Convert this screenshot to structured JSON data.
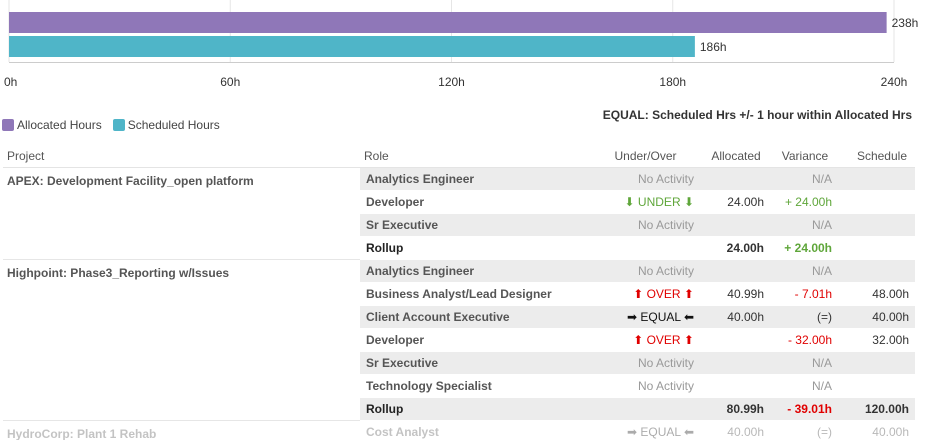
{
  "chart_data": {
    "type": "bar",
    "orientation": "horizontal",
    "series": [
      {
        "name": "Allocated Hours",
        "value": 238,
        "label": "238h",
        "color": "#8f77b8"
      },
      {
        "name": "Scheduled Hours",
        "value": 186,
        "label": "186h",
        "color": "#4fb5c8"
      }
    ],
    "xlim": [
      0,
      240
    ],
    "ticks": [
      {
        "value": 0,
        "label": "0h"
      },
      {
        "value": 60,
        "label": "60h"
      },
      {
        "value": 120,
        "label": "120h"
      },
      {
        "value": 180,
        "label": "180h"
      },
      {
        "value": 240,
        "label": "240h"
      }
    ],
    "grid": true,
    "legend": "bottom-left"
  },
  "legend": {
    "allocated_label": "Allocated Hours",
    "scheduled_label": "Scheduled Hours",
    "allocated_color": "#8f77b8",
    "scheduled_color": "#4fb5c8"
  },
  "note": "EQUAL: Scheduled Hrs +/- 1 hour within Allocated Hrs",
  "table": {
    "headers": {
      "project": "Project",
      "role": "Role",
      "under_over": "Under/Over",
      "allocated": "Allocated",
      "variance": "Variance",
      "schedule": "Schedule"
    },
    "groups": [
      {
        "project": "APEX: Development Facility_open platform",
        "rows": [
          {
            "role": "Analytics Engineer",
            "status": "No Activity",
            "status_type": "noact",
            "allocated": "",
            "variance": "N/A",
            "variance_type": "muted",
            "schedule": "",
            "shaded": true
          },
          {
            "role": "Developer",
            "status": "⬇ UNDER ⬇",
            "status_type": "under",
            "allocated": "24.00h",
            "variance": "+ 24.00h",
            "variance_type": "green",
            "schedule": "",
            "shaded": false
          },
          {
            "role": "Sr Executive",
            "status": "No Activity",
            "status_type": "noact",
            "allocated": "",
            "variance": "N/A",
            "variance_type": "muted",
            "schedule": "",
            "shaded": true
          },
          {
            "role": "Rollup",
            "status": "",
            "status_type": "noact",
            "allocated": "24.00h",
            "variance": "+ 24.00h",
            "variance_type": "green",
            "schedule": "",
            "shaded": false,
            "rollup": true
          }
        ]
      },
      {
        "project": "Highpoint: Phase3_Reporting w/Issues",
        "rows": [
          {
            "role": "Analytics Engineer",
            "status": "No Activity",
            "status_type": "noact",
            "allocated": "",
            "variance": "N/A",
            "variance_type": "muted",
            "schedule": "",
            "shaded": true
          },
          {
            "role": "Business Analyst/Lead Designer",
            "status": "⬆ OVER ⬆",
            "status_type": "over",
            "allocated": "40.99h",
            "variance": "- 7.01h",
            "variance_type": "red",
            "schedule": "48.00h",
            "shaded": false
          },
          {
            "role": "Client Account Executive",
            "status": "➡ EQUAL ⬅",
            "status_type": "equal",
            "allocated": "40.00h",
            "variance": "(=)",
            "variance_type": "plain",
            "schedule": "40.00h",
            "shaded": true
          },
          {
            "role": "Developer",
            "status": "⬆ OVER ⬆",
            "status_type": "over",
            "allocated": "",
            "variance": "- 32.00h",
            "variance_type": "red",
            "schedule": "32.00h",
            "shaded": false
          },
          {
            "role": "Sr Executive",
            "status": "No Activity",
            "status_type": "noact",
            "allocated": "",
            "variance": "N/A",
            "variance_type": "muted",
            "schedule": "",
            "shaded": true
          },
          {
            "role": "Technology Specialist",
            "status": "No Activity",
            "status_type": "noact",
            "allocated": "",
            "variance": "N/A",
            "variance_type": "muted",
            "schedule": "",
            "shaded": false
          },
          {
            "role": "Rollup",
            "status": "",
            "status_type": "noact",
            "allocated": "80.99h",
            "variance": "- 39.01h",
            "variance_type": "red",
            "schedule": "120.00h",
            "shaded": true,
            "rollup": true
          }
        ]
      },
      {
        "project": "HydroCorp: Plant 1 Rehab",
        "faded": true,
        "rows": [
          {
            "role": "Cost Analyst",
            "status": "➡ EQUAL ⬅",
            "status_type": "equal",
            "allocated": "40.00h",
            "variance": "(=)",
            "variance_type": "plain",
            "schedule": "40.00h",
            "shaded": false
          }
        ]
      }
    ]
  }
}
